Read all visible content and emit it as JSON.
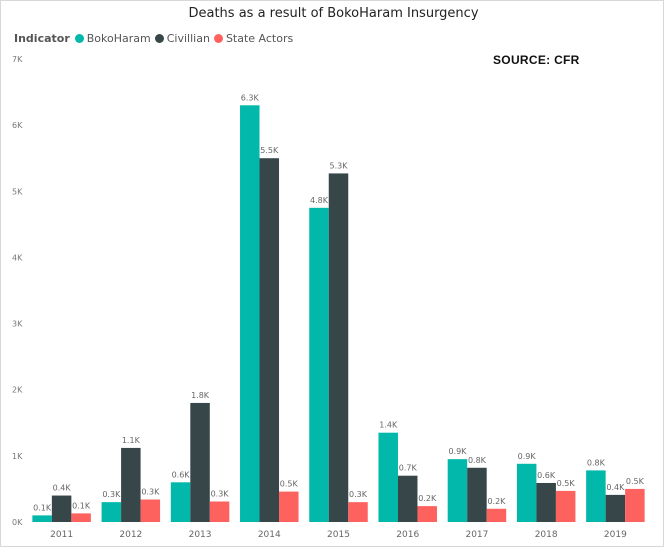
{
  "chart_data": {
    "type": "bar",
    "title": "Deaths as a result of BokoHaram Insurgency",
    "legend_title": "Indicator",
    "source_note": "SOURCE: CFR",
    "legend_position": "top-left",
    "categories": [
      "2011",
      "2012",
      "2013",
      "2014",
      "2015",
      "2016",
      "2017",
      "2018",
      "2019"
    ],
    "series": [
      {
        "name": "BokoHaram",
        "color": "#01b8aa",
        "values": [
          100,
          300,
          600,
          6300,
          4750,
          1350,
          950,
          880,
          780
        ],
        "labels": [
          "0.1K",
          "0.3K",
          "0.6K",
          "6.3K",
          "4.8K",
          "1.4K",
          "0.9K",
          "0.9K",
          "0.8K"
        ]
      },
      {
        "name": "Civillian",
        "color": "#374649",
        "values": [
          400,
          1120,
          1800,
          5500,
          5270,
          700,
          820,
          590,
          410
        ],
        "labels": [
          "0.4K",
          "1.1K",
          "1.8K",
          "5.5K",
          "5.3K",
          "0.7K",
          "0.8K",
          "0.6K",
          "0.4K"
        ]
      },
      {
        "name": "State Actors",
        "color": "#fd625e",
        "values": [
          130,
          340,
          310,
          460,
          300,
          240,
          200,
          470,
          500
        ],
        "labels": [
          "0.1K",
          "0.3K",
          "0.3K",
          "0.5K",
          "0.3K",
          "0.2K",
          "0.2K",
          "0.5K",
          "0.5K"
        ]
      }
    ],
    "ylim": [
      0,
      7000
    ],
    "yticks": [
      0,
      1000,
      2000,
      3000,
      4000,
      5000,
      6000,
      7000
    ],
    "ytick_labels": [
      "0K",
      "1K",
      "2K",
      "3K",
      "4K",
      "5K",
      "6K",
      "7K"
    ],
    "grid": false
  }
}
